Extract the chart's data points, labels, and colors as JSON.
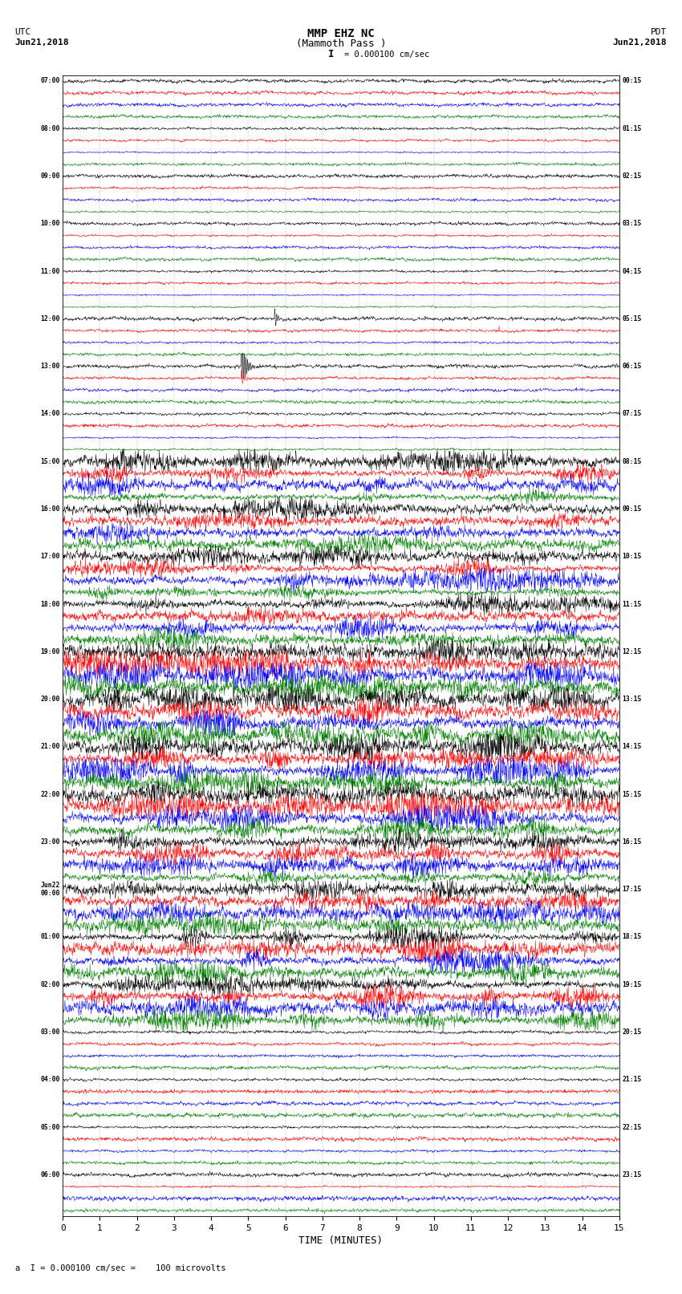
{
  "title_line1": "MMP EHZ NC",
  "title_line2": "(Mammoth Pass )",
  "scale_label": "I = 0.000100 cm/sec",
  "utc_label_line1": "UTC",
  "utc_label_line2": "Jun21,2018",
  "pdt_label_line1": "PDT",
  "pdt_label_line2": "Jun21,2018",
  "bottom_label": "a  I = 0.000100 cm/sec =    100 microvolts",
  "xlabel": "TIME (MINUTES)",
  "left_times_utc": [
    "07:00",
    "",
    "",
    "",
    "08:00",
    "",
    "",
    "",
    "09:00",
    "",
    "",
    "",
    "10:00",
    "",
    "",
    "",
    "11:00",
    "",
    "",
    "",
    "12:00",
    "",
    "",
    "",
    "13:00",
    "",
    "",
    "",
    "14:00",
    "",
    "",
    "",
    "15:00",
    "",
    "",
    "",
    "16:00",
    "",
    "",
    "",
    "17:00",
    "",
    "",
    "",
    "18:00",
    "",
    "",
    "",
    "19:00",
    "",
    "",
    "",
    "20:00",
    "",
    "",
    "",
    "21:00",
    "",
    "",
    "",
    "22:00",
    "",
    "",
    "",
    "23:00",
    "",
    "",
    "",
    "Jun22\n00:00",
    "",
    "",
    "",
    "01:00",
    "",
    "",
    "",
    "02:00",
    "",
    "",
    "",
    "03:00",
    "",
    "",
    "",
    "04:00",
    "",
    "",
    "",
    "05:00",
    "",
    "",
    "",
    "06:00",
    "",
    "",
    ""
  ],
  "right_times_pdt": [
    "00:15",
    "",
    "",
    "",
    "01:15",
    "",
    "",
    "",
    "02:15",
    "",
    "",
    "",
    "03:15",
    "",
    "",
    "",
    "04:15",
    "",
    "",
    "",
    "05:15",
    "",
    "",
    "",
    "06:15",
    "",
    "",
    "",
    "07:15",
    "",
    "",
    "",
    "08:15",
    "",
    "",
    "",
    "09:15",
    "",
    "",
    "",
    "10:15",
    "",
    "",
    "",
    "11:15",
    "",
    "",
    "",
    "12:15",
    "",
    "",
    "",
    "13:15",
    "",
    "",
    "",
    "14:15",
    "",
    "",
    "",
    "15:15",
    "",
    "",
    "",
    "16:15",
    "",
    "",
    "",
    "17:15",
    "",
    "",
    "",
    "18:15",
    "",
    "",
    "",
    "19:15",
    "",
    "",
    "",
    "20:15",
    "",
    "",
    "",
    "21:15",
    "",
    "",
    "",
    "22:15",
    "",
    "",
    "",
    "23:15",
    "",
    "",
    ""
  ],
  "n_rows": 96,
  "n_points": 1800,
  "colors_cycle": [
    "black",
    "red",
    "blue",
    "green"
  ],
  "background_color": "#ffffff",
  "noise_seed": 42
}
